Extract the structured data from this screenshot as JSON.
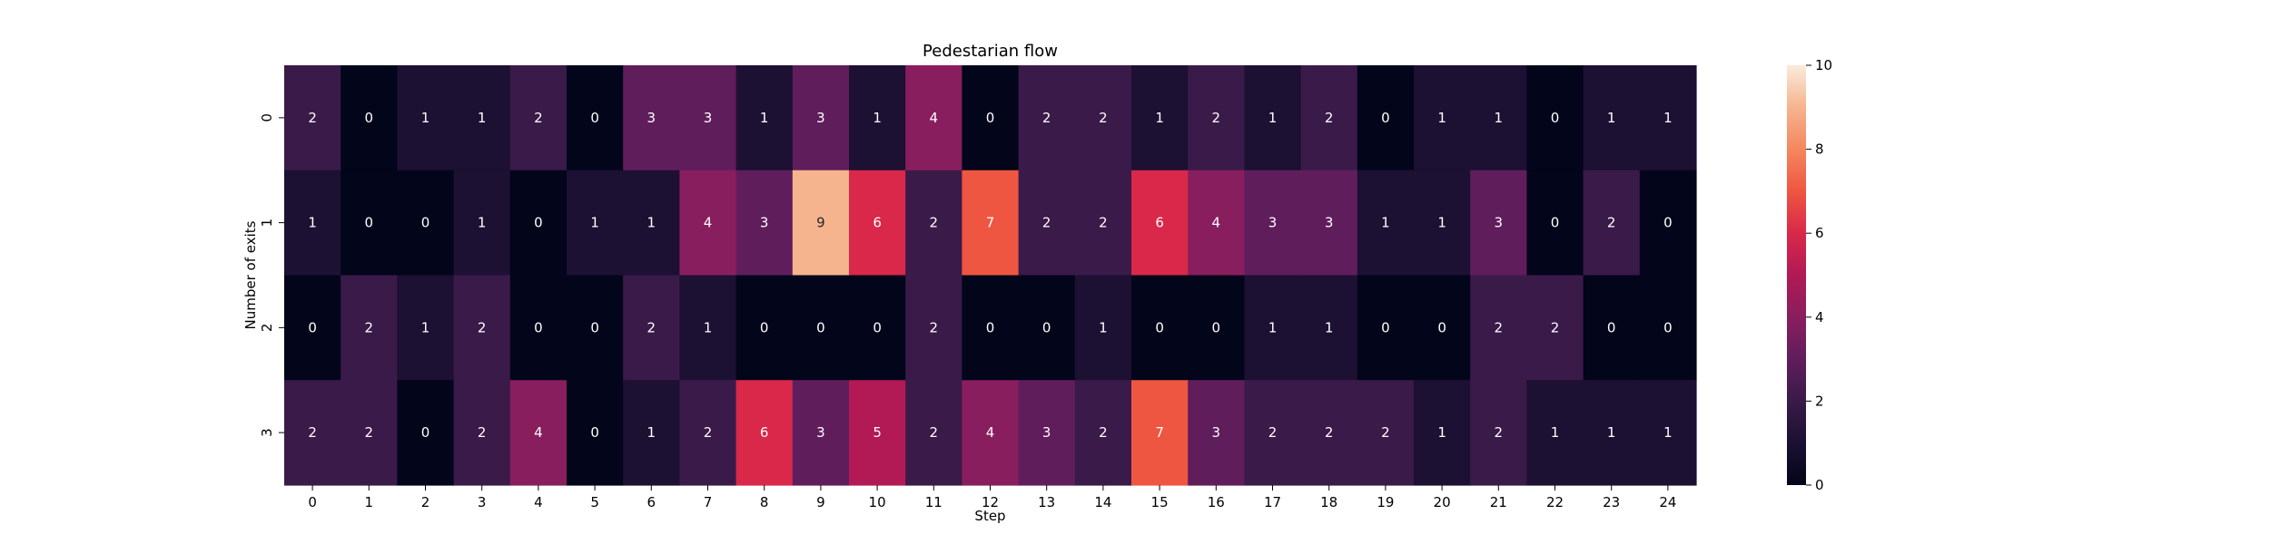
{
  "chart_data": {
    "type": "heatmap",
    "title": "Pedestarian flow",
    "xlabel": "Step",
    "ylabel": "Number of exits",
    "x_categories": [
      "0",
      "1",
      "2",
      "3",
      "4",
      "5",
      "6",
      "7",
      "8",
      "9",
      "10",
      "11",
      "12",
      "13",
      "14",
      "15",
      "16",
      "17",
      "18",
      "19",
      "20",
      "21",
      "22",
      "23",
      "24"
    ],
    "y_categories": [
      "0",
      "1",
      "2",
      "3"
    ],
    "values": [
      [
        2,
        0,
        1,
        1,
        2,
        0,
        3,
        3,
        1,
        3,
        1,
        4,
        0,
        2,
        2,
        1,
        2,
        1,
        2,
        0,
        1,
        1,
        0,
        1,
        1
      ],
      [
        1,
        0,
        0,
        1,
        0,
        1,
        1,
        4,
        3,
        9,
        6,
        2,
        7,
        2,
        2,
        6,
        4,
        3,
        3,
        1,
        1,
        3,
        0,
        2,
        0
      ],
      [
        0,
        2,
        1,
        2,
        0,
        0,
        2,
        1,
        0,
        0,
        0,
        2,
        0,
        0,
        1,
        0,
        0,
        1,
        1,
        0,
        0,
        2,
        2,
        0,
        0
      ],
      [
        2,
        2,
        0,
        2,
        4,
        0,
        1,
        2,
        6,
        3,
        5,
        2,
        4,
        3,
        2,
        7,
        3,
        2,
        2,
        2,
        1,
        2,
        1,
        1,
        1
      ]
    ],
    "colorbar": {
      "min": 0,
      "max": 10,
      "ticks": [
        "0",
        "2",
        "4",
        "6",
        "8",
        "10"
      ]
    },
    "colormap": "rocket",
    "annotations": true
  }
}
